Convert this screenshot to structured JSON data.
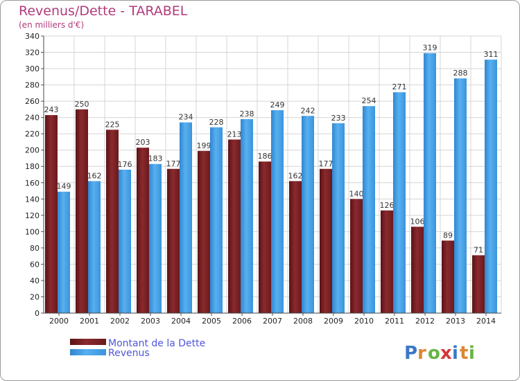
{
  "chart_data": {
    "type": "bar",
    "title": "Revenus/Dette - TARABEL",
    "subtitle": "(en milliers d'€)",
    "categories": [
      "2000",
      "2001",
      "2002",
      "2003",
      "2004",
      "2005",
      "2006",
      "2007",
      "2008",
      "2009",
      "2010",
      "2011",
      "2012",
      "2013",
      "2014"
    ],
    "series": [
      {
        "name": "Montant de la Dette",
        "values": [
          243,
          250,
          225,
          203,
          177,
          199,
          213,
          186,
          162,
          177,
          140,
          126,
          106,
          89,
          71
        ],
        "color": "#7a1e22"
      },
      {
        "name": "Revenus",
        "values": [
          149,
          162,
          176,
          183,
          234,
          228,
          238,
          249,
          242,
          233,
          254,
          271,
          319,
          288,
          311
        ],
        "color": "#3d9ae3"
      }
    ],
    "ylim": [
      0,
      340
    ],
    "ytick_step": 20,
    "grid": true,
    "legend_position": "bottom-left"
  },
  "logo": {
    "text": "Proxiti",
    "colors": [
      "#3a78c7",
      "#e0862f",
      "#68b443",
      "#d6353a",
      "#3a78c7",
      "#e0862f",
      "#68b443"
    ]
  }
}
